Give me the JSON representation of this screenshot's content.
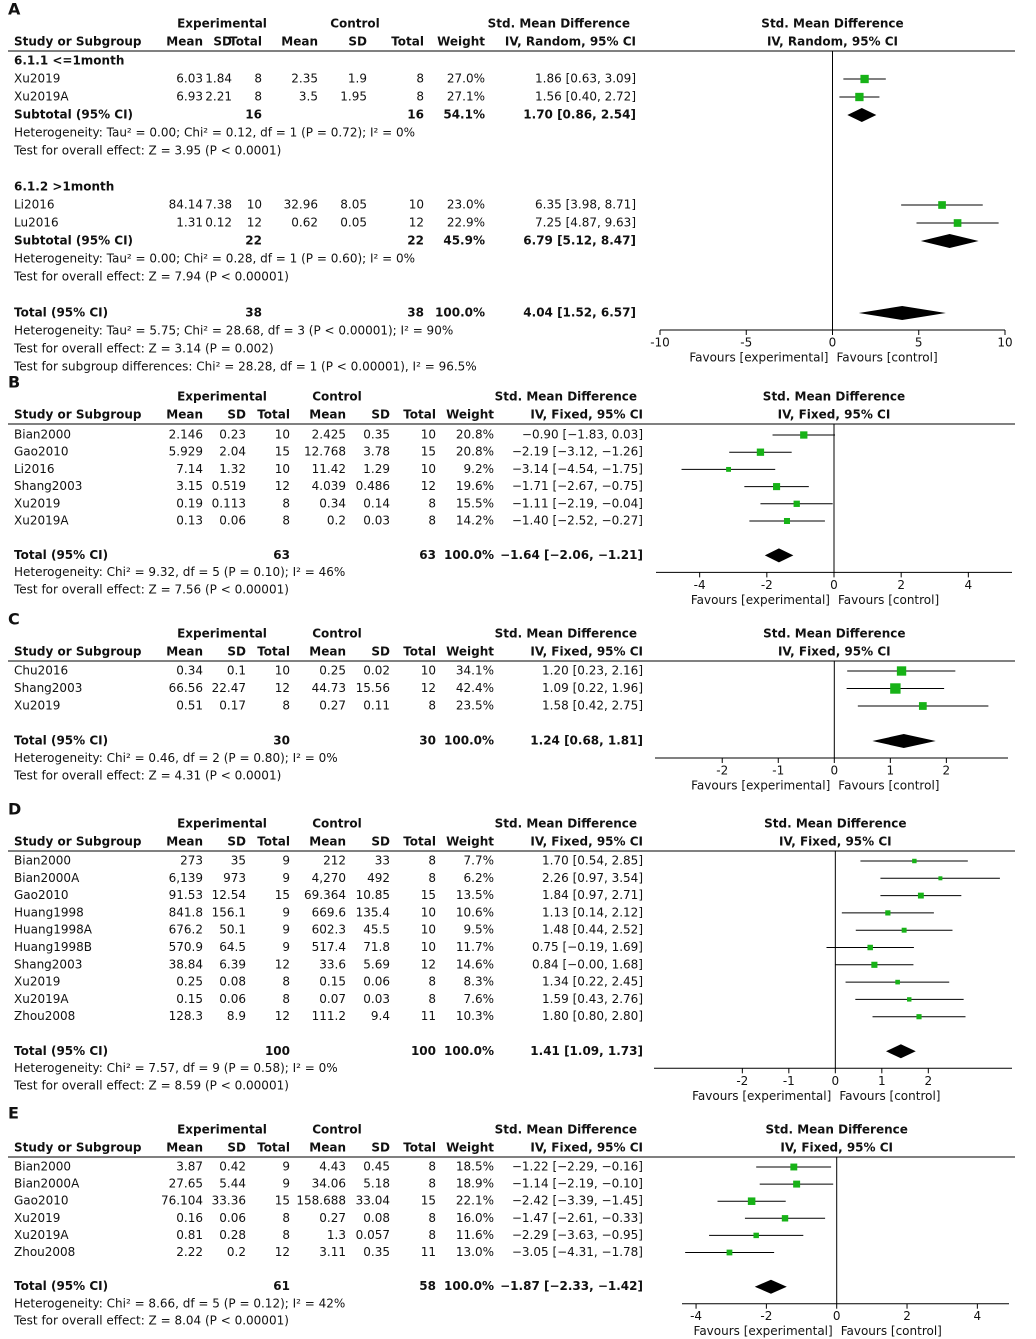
{
  "chart_data": [
    {
      "type": "forest",
      "panel": "A",
      "group_labels": [
        "Experimental",
        "Control"
      ],
      "columns": [
        "Study or Subgroup",
        "Mean",
        "SD",
        "Total",
        "Mean",
        "SD",
        "Total",
        "Weight"
      ],
      "effect_measure": "Std. Mean Difference",
      "method": "IV, Random, 95% CI",
      "marker_color": "#17b217",
      "diamond_color": "#000000",
      "subgroups": [
        {
          "label": "6.1.1 <=1month",
          "studies": [
            {
              "label": "Xu2019",
              "mean1": 6.03,
              "sd1": 1.84,
              "n1": 8,
              "mean2": 2.35,
              "sd2": 1.9,
              "n2": 8,
              "weight": 27.0,
              "weight_label": "27.0%",
              "smd": 1.86,
              "ci": [
                0.63,
                3.09
              ],
              "ci_label": "1.86 [0.63, 3.09]"
            },
            {
              "label": "Xu2019A",
              "mean1": 6.93,
              "sd1": 2.21,
              "n1": 8,
              "mean2": 3.5,
              "sd2": 1.95,
              "n2": 8,
              "weight": 27.1,
              "weight_label": "27.1%",
              "smd": 1.56,
              "ci": [
                0.4,
                2.72
              ],
              "ci_label": "1.56 [0.40, 2.72]"
            }
          ],
          "subtotal": {
            "label": "Subtotal (95% CI)",
            "n1": 16,
            "n2": 16,
            "weight_label": "54.1%",
            "smd": 1.7,
            "ci": [
              0.86,
              2.54
            ],
            "ci_label": "1.70 [0.86, 2.54]"
          },
          "notes": [
            "Heterogeneity: Tau² = 0.00; Chi² = 0.12, df = 1 (P = 0.72); I² = 0%",
            "Test for overall effect: Z = 3.95 (P < 0.0001)"
          ]
        },
        {
          "label": "6.1.2 >1month",
          "studies": [
            {
              "label": "Li2016",
              "mean1": 84.14,
              "sd1": 7.38,
              "n1": 10,
              "mean2": 32.96,
              "sd2": 8.05,
              "n2": 10,
              "weight": 23.0,
              "weight_label": "23.0%",
              "smd": 6.35,
              "ci": [
                3.98,
                8.71
              ],
              "ci_label": "6.35 [3.98, 8.71]"
            },
            {
              "label": "Lu2016",
              "mean1": 1.31,
              "sd1": 0.12,
              "n1": 12,
              "mean2": 0.62,
              "sd2": 0.05,
              "n2": 12,
              "weight": 22.9,
              "weight_label": "22.9%",
              "smd": 7.25,
              "ci": [
                4.87,
                9.63
              ],
              "ci_label": "7.25 [4.87, 9.63]"
            }
          ],
          "subtotal": {
            "label": "Subtotal (95% CI)",
            "n1": 22,
            "n2": 22,
            "weight_label": "45.9%",
            "smd": 6.79,
            "ci": [
              5.12,
              8.47
            ],
            "ci_label": "6.79 [5.12, 8.47]"
          },
          "notes": [
            "Heterogeneity: Tau² = 0.00; Chi² = 0.28, df = 1 (P = 0.60); I² = 0%",
            "Test for overall effect: Z = 7.94 (P < 0.00001)"
          ]
        }
      ],
      "total": {
        "label": "Total (95% CI)",
        "n1": 38,
        "n2": 38,
        "weight_label": "100.0%",
        "smd": 4.04,
        "ci": [
          1.52,
          6.57
        ],
        "ci_label": "4.04 [1.52, 6.57]"
      },
      "notes": [
        "Heterogeneity: Tau² = 5.75; Chi² = 28.68, df = 3 (P < 0.00001); I² = 90%",
        "Test for overall effect: Z = 3.14 (P = 0.002)",
        "Test for subgroup differences: Chi² = 28.28, df = 1 (P < 0.00001), I² = 96.5%"
      ],
      "xlim": [
        -10,
        10
      ],
      "xticks": [
        -10,
        -5,
        0,
        5,
        10
      ],
      "xlabel_left": "Favours [experimental]",
      "xlabel_right": "Favours [control]"
    },
    {
      "type": "forest",
      "panel": "B",
      "group_labels": [
        "Experimental",
        "Control"
      ],
      "columns": [
        "Study or Subgroup",
        "Mean",
        "SD",
        "Total",
        "Mean",
        "SD",
        "Total",
        "Weight"
      ],
      "effect_measure": "Std. Mean Difference",
      "method": "IV, Fixed, 95% CI",
      "marker_color": "#17b217",
      "diamond_color": "#000000",
      "studies": [
        {
          "label": "Bian2000",
          "mean1": 2.146,
          "sd1": 0.23,
          "n1": 10,
          "mean2": 2.425,
          "sd2": 0.35,
          "n2": 10,
          "weight": 20.8,
          "weight_label": "20.8%",
          "smd": -0.9,
          "ci": [
            -1.83,
            0.03
          ],
          "ci_label": "−0.90 [−1.83, 0.03]"
        },
        {
          "label": "Gao2010",
          "mean1": 5.929,
          "sd1": 2.04,
          "n1": 15,
          "mean2": 12.768,
          "sd2": 3.78,
          "n2": 15,
          "weight": 20.8,
          "weight_label": "20.8%",
          "smd": -2.19,
          "ci": [
            -3.12,
            -1.26
          ],
          "ci_label": "−2.19 [−3.12, −1.26]"
        },
        {
          "label": "Li2016",
          "mean1": 7.14,
          "sd1": 1.32,
          "n1": 10,
          "mean2": 11.42,
          "sd2": 1.29,
          "n2": 10,
          "weight": 9.2,
          "weight_label": "9.2%",
          "smd": -3.14,
          "ci": [
            -4.54,
            -1.75
          ],
          "ci_label": "−3.14 [−4.54, −1.75]"
        },
        {
          "label": "Shang2003",
          "mean1": 3.15,
          "sd1": 0.519,
          "n1": 12,
          "mean2": 4.039,
          "sd2": 0.486,
          "n2": 12,
          "weight": 19.6,
          "weight_label": "19.6%",
          "smd": -1.71,
          "ci": [
            -2.67,
            -0.75
          ],
          "ci_label": "−1.71 [−2.67, −0.75]"
        },
        {
          "label": "Xu2019",
          "mean1": 0.19,
          "sd1": 0.113,
          "n1": 8,
          "mean2": 0.34,
          "sd2": 0.14,
          "n2": 8,
          "weight": 15.5,
          "weight_label": "15.5%",
          "smd": -1.11,
          "ci": [
            -2.19,
            -0.04
          ],
          "ci_label": "−1.11 [−2.19, −0.04]"
        },
        {
          "label": "Xu2019A",
          "mean1": 0.13,
          "sd1": 0.06,
          "n1": 8,
          "mean2": 0.2,
          "sd2": 0.03,
          "n2": 8,
          "weight": 14.2,
          "weight_label": "14.2%",
          "smd": -1.4,
          "ci": [
            -2.52,
            -0.27
          ],
          "ci_label": "−1.40 [−2.52, −0.27]"
        }
      ],
      "total": {
        "label": "Total (95% CI)",
        "n1": 63,
        "n2": 63,
        "weight_label": "100.0%",
        "smd": -1.64,
        "ci": [
          -2.06,
          -1.21
        ],
        "ci_label": "−1.64 [−2.06, −1.21]"
      },
      "notes": [
        "Heterogeneity: Chi² = 9.32, df = 5 (P = 0.10); I² = 46%",
        "Test for overall effect: Z = 7.56 (P < 0.00001)"
      ],
      "xlim": [
        -5.3,
        5.3
      ],
      "xticks": [
        -4,
        -2,
        0,
        2,
        4
      ],
      "xlabel_left": "Favours [experimental]",
      "xlabel_right": "Favours [control]"
    },
    {
      "type": "forest",
      "panel": "C",
      "group_labels": [
        "Experimental",
        "Control"
      ],
      "columns": [
        "Study or Subgroup",
        "Mean",
        "SD",
        "Total",
        "Mean",
        "SD",
        "Total",
        "Weight"
      ],
      "effect_measure": "Std. Mean Difference",
      "method": "IV, Fixed, 95% CI",
      "marker_color": "#17b217",
      "diamond_color": "#000000",
      "studies": [
        {
          "label": "Chu2016",
          "mean1": 0.34,
          "sd1": 0.1,
          "n1": 10,
          "mean2": 0.25,
          "sd2": 0.02,
          "n2": 10,
          "weight": 34.1,
          "weight_label": "34.1%",
          "smd": 1.2,
          "ci": [
            0.23,
            2.16
          ],
          "ci_label": "1.20 [0.23, 2.16]"
        },
        {
          "label": "Shang2003",
          "mean1": 66.56,
          "sd1": 22.47,
          "n1": 12,
          "mean2": 44.73,
          "sd2": 15.56,
          "n2": 12,
          "weight": 42.4,
          "weight_label": "42.4%",
          "smd": 1.09,
          "ci": [
            0.22,
            1.96
          ],
          "ci_label": "1.09 [0.22, 1.96]"
        },
        {
          "label": "Xu2019",
          "mean1": 0.51,
          "sd1": 0.17,
          "n1": 8,
          "mean2": 0.27,
          "sd2": 0.11,
          "n2": 8,
          "weight": 23.5,
          "weight_label": "23.5%",
          "smd": 1.58,
          "ci": [
            0.42,
            2.75
          ],
          "ci_label": "1.58 [0.42, 2.75]"
        }
      ],
      "total": {
        "label": "Total (95% CI)",
        "n1": 30,
        "n2": 30,
        "weight_label": "100.0%",
        "smd": 1.24,
        "ci": [
          0.68,
          1.81
        ],
        "ci_label": "1.24 [0.68, 1.81]"
      },
      "notes": [
        "Heterogeneity: Chi² = 0.46, df = 2 (P = 0.80); I² = 0%",
        "Test for overall effect: Z = 4.31 (P < 0.0001)"
      ],
      "xlim": [
        -3.2,
        3.1
      ],
      "xticks": [
        -2,
        -1,
        0,
        1,
        2
      ],
      "xlabel_left": "Favours [experimental]",
      "xlabel_right": "Favours [control]"
    },
    {
      "type": "forest",
      "panel": "D",
      "group_labels": [
        "Experimental",
        "Control"
      ],
      "columns": [
        "Study or Subgroup",
        "Mean",
        "SD",
        "Total",
        "Mean",
        "SD",
        "Total",
        "Weight"
      ],
      "effect_measure": "Std. Mean Difference",
      "method": "IV, Fixed, 95% CI",
      "marker_color": "#17b217",
      "diamond_color": "#000000",
      "studies": [
        {
          "label": "Bian2000",
          "mean1": 273,
          "sd1": 35,
          "n1": 9,
          "mean2": 212,
          "sd2": 33,
          "n2": 8,
          "weight": 7.7,
          "weight_label": "7.7%",
          "smd": 1.7,
          "ci": [
            0.54,
            2.85
          ],
          "ci_label": "1.70 [0.54, 2.85]"
        },
        {
          "label": "Bian2000A",
          "mean1": "6,139",
          "sd1": 973,
          "n1": 9,
          "mean2": "4,270",
          "sd2": 492,
          "n2": 8,
          "weight": 6.2,
          "weight_label": "6.2%",
          "smd": 2.26,
          "ci": [
            0.97,
            3.54
          ],
          "ci_label": "2.26 [0.97, 3.54]"
        },
        {
          "label": "Gao2010",
          "mean1": 91.53,
          "sd1": 12.54,
          "n1": 15,
          "mean2": 69.364,
          "sd2": 10.85,
          "n2": 15,
          "weight": 13.5,
          "weight_label": "13.5%",
          "smd": 1.84,
          "ci": [
            0.97,
            2.71
          ],
          "ci_label": "1.84 [0.97, 2.71]"
        },
        {
          "label": "Huang1998",
          "mean1": 841.8,
          "sd1": 156.1,
          "n1": 9,
          "mean2": 669.6,
          "sd2": 135.4,
          "n2": 10,
          "weight": 10.6,
          "weight_label": "10.6%",
          "smd": 1.13,
          "ci": [
            0.14,
            2.12
          ],
          "ci_label": "1.13 [0.14, 2.12]"
        },
        {
          "label": "Huang1998A",
          "mean1": 676.2,
          "sd1": 50.1,
          "n1": 9,
          "mean2": 602.3,
          "sd2": 45.5,
          "n2": 10,
          "weight": 9.5,
          "weight_label": "9.5%",
          "smd": 1.48,
          "ci": [
            0.44,
            2.52
          ],
          "ci_label": "1.48 [0.44, 2.52]"
        },
        {
          "label": "Huang1998B",
          "mean1": 570.9,
          "sd1": 64.5,
          "n1": 9,
          "mean2": 517.4,
          "sd2": 71.8,
          "n2": 10,
          "weight": 11.7,
          "weight_label": "11.7%",
          "smd": 0.75,
          "ci": [
            -0.19,
            1.69
          ],
          "ci_label": "0.75 [−0.19, 1.69]"
        },
        {
          "label": "Shang2003",
          "mean1": 38.84,
          "sd1": 6.39,
          "n1": 12,
          "mean2": 33.6,
          "sd2": 5.69,
          "n2": 12,
          "weight": 14.6,
          "weight_label": "14.6%",
          "smd": 0.84,
          "ci": [
            -0.0,
            1.68
          ],
          "ci_label": "0.84 [−0.00, 1.68]"
        },
        {
          "label": "Xu2019",
          "mean1": 0.25,
          "sd1": 0.08,
          "n1": 8,
          "mean2": 0.15,
          "sd2": 0.06,
          "n2": 8,
          "weight": 8.3,
          "weight_label": "8.3%",
          "smd": 1.34,
          "ci": [
            0.22,
            2.45
          ],
          "ci_label": "1.34 [0.22, 2.45]"
        },
        {
          "label": "Xu2019A",
          "mean1": 0.15,
          "sd1": 0.06,
          "n1": 8,
          "mean2": 0.07,
          "sd2": 0.03,
          "n2": 8,
          "weight": 7.6,
          "weight_label": "7.6%",
          "smd": 1.59,
          "ci": [
            0.43,
            2.76
          ],
          "ci_label": "1.59 [0.43, 2.76]"
        },
        {
          "label": "Zhou2008",
          "mean1": 128.3,
          "sd1": 8.9,
          "n1": 12,
          "mean2": 111.2,
          "sd2": 9.4,
          "n2": 11,
          "weight": 10.3,
          "weight_label": "10.3%",
          "smd": 1.8,
          "ci": [
            0.8,
            2.8
          ],
          "ci_label": "1.80 [0.80, 2.80]"
        }
      ],
      "total": {
        "label": "Total (95% CI)",
        "n1": 100,
        "n2": 100,
        "weight_label": "100.0%",
        "smd": 1.41,
        "ci": [
          1.09,
          1.73
        ],
        "ci_label": "1.41 [1.09, 1.73]"
      },
      "notes": [
        "Heterogeneity: Chi² = 7.57, df = 9 (P = 0.58); I² = 0%",
        "Test for overall effect: Z = 8.59 (P < 0.00001)"
      ],
      "xlim": [
        -3.9,
        3.8
      ],
      "xticks": [
        -2,
        -1,
        0,
        1,
        2
      ],
      "xlabel_left": "Favours [experimental]",
      "xlabel_right": "Favours [control]"
    },
    {
      "type": "forest",
      "panel": "E",
      "group_labels": [
        "Experimental",
        "Control"
      ],
      "columns": [
        "Study or Subgroup",
        "Mean",
        "SD",
        "Total",
        "Mean",
        "SD",
        "Total",
        "Weight"
      ],
      "effect_measure": "Std. Mean Difference",
      "method": "IV, Fixed, 95% CI",
      "marker_color": "#17b217",
      "diamond_color": "#000000",
      "studies": [
        {
          "label": "Bian2000",
          "mean1": 3.87,
          "sd1": 0.42,
          "n1": 9,
          "mean2": 4.43,
          "sd2": 0.45,
          "n2": 8,
          "weight": 18.5,
          "weight_label": "18.5%",
          "smd": -1.22,
          "ci": [
            -2.29,
            -0.16
          ],
          "ci_label": "−1.22 [−2.29, −0.16]"
        },
        {
          "label": "Bian2000A",
          "mean1": 27.65,
          "sd1": 5.44,
          "n1": 9,
          "mean2": 34.06,
          "sd2": 5.18,
          "n2": 8,
          "weight": 18.9,
          "weight_label": "18.9%",
          "smd": -1.14,
          "ci": [
            -2.19,
            -0.1
          ],
          "ci_label": "−1.14 [−2.19, −0.10]"
        },
        {
          "label": "Gao2010",
          "mean1": 76.104,
          "sd1": 33.36,
          "n1": 15,
          "mean2": 158.688,
          "sd2": 33.04,
          "n2": 15,
          "weight": 22.1,
          "weight_label": "22.1%",
          "smd": -2.42,
          "ci": [
            -3.39,
            -1.45
          ],
          "ci_label": "−2.42 [−3.39, −1.45]"
        },
        {
          "label": "Xu2019",
          "mean1": 0.16,
          "sd1": 0.06,
          "n1": 8,
          "mean2": 0.27,
          "sd2": 0.08,
          "n2": 8,
          "weight": 16.0,
          "weight_label": "16.0%",
          "smd": -1.47,
          "ci": [
            -2.61,
            -0.33
          ],
          "ci_label": "−1.47 [−2.61, −0.33]"
        },
        {
          "label": "Xu2019A",
          "mean1": 0.81,
          "sd1": 0.28,
          "n1": 8,
          "mean2": 1.3,
          "sd2": 0.057,
          "n2": 8,
          "weight": 11.6,
          "weight_label": "11.6%",
          "smd": -2.29,
          "ci": [
            -3.63,
            -0.95
          ],
          "ci_label": "−2.29 [−3.63, −0.95]"
        },
        {
          "label": "Zhou2008",
          "mean1": 2.22,
          "sd1": 0.2,
          "n1": 12,
          "mean2": 3.11,
          "sd2": 0.35,
          "n2": 11,
          "weight": 13.0,
          "weight_label": "13.0%",
          "smd": -3.05,
          "ci": [
            -4.31,
            -1.78
          ],
          "ci_label": "−3.05 [−4.31, −1.78]"
        }
      ],
      "total": {
        "label": "Total (95% CI)",
        "n1": 61,
        "n2": 58,
        "weight_label": "100.0%",
        "smd": -1.87,
        "ci": [
          -2.33,
          -1.42
        ],
        "ci_label": "−1.87 [−2.33, −1.42]"
      },
      "notes": [
        "Heterogeneity: Chi² = 8.66, df = 5 (P = 0.12); I² = 42%",
        "Test for overall effect: Z = 8.04 (P < 0.00001)"
      ],
      "xlim": [
        -4.4,
        4.9
      ],
      "xticks": [
        -4,
        -2,
        0,
        2,
        4
      ],
      "xlabel_left": "Favours [experimental]",
      "xlabel_right": "Favours [control]"
    }
  ]
}
